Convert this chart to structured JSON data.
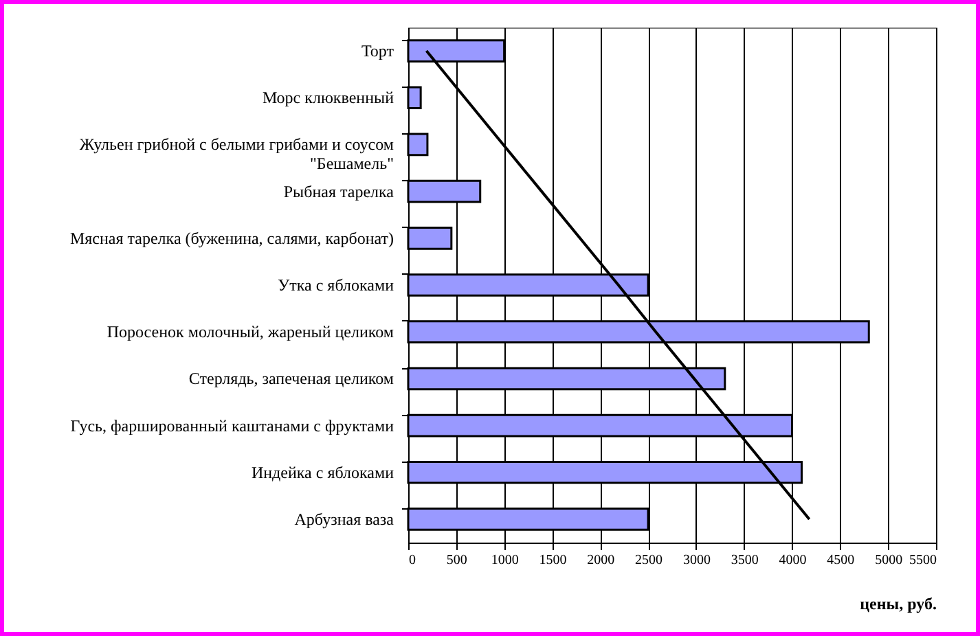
{
  "chart_data": {
    "type": "bar",
    "orientation": "horizontal",
    "xlabel": "цены, руб.",
    "categories": [
      "Торт",
      "Морс клюквенный",
      "Жульен грибной с белыми грибами и соусом \"Бешамель\"",
      "Рыбная тарелка",
      "Мясная тарелка (буженина, салями, карбонат)",
      "Утка с яблоками",
      "Поросенок молочный, жареный целиком",
      "Стерлядь, запеченая целиком",
      "Гусь, фаршированный каштанами с фруктами",
      "Индейка с яблоками",
      "Арбузная ваза"
    ],
    "series": [
      {
        "color": "#9999ff",
        "values": [
          1000,
          130,
          200,
          750,
          450,
          2500,
          4800,
          3300,
          4000,
          4100,
          2500
        ]
      },
      {
        "type": "line",
        "color": "#000000",
        "values": [
          190,
          590,
          990,
          1390,
          1790,
          2190,
          2580,
          2980,
          3380,
          3780,
          4180
        ]
      }
    ],
    "xlim": [
      0,
      5500
    ],
    "xticks": [
      0,
      500,
      1000,
      1500,
      2000,
      2500,
      3000,
      3500,
      4000,
      4500,
      5000,
      5500
    ],
    "grid": "x"
  }
}
